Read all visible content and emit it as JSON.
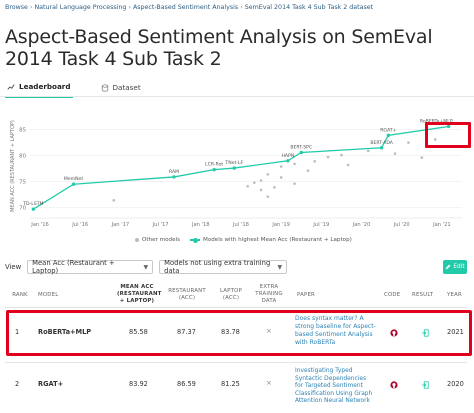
{
  "breadcrumb": [
    "Browse",
    "Natural Language Processing",
    "Aspect-Based Sentiment Analysis",
    "SemEval 2014 Task 4 Sub Task 2 dataset"
  ],
  "page_title": "Aspect-Based Sentiment Analysis on SemEval 2014 Task 4 Sub Task 2",
  "tabs": [
    {
      "label": "Leaderboard",
      "icon": "chart-line-icon",
      "active": true
    },
    {
      "label": "Dataset",
      "icon": "database-icon",
      "active": false
    }
  ],
  "chart_data": {
    "type": "line",
    "ylabel": "MEAN ACC (RESTAURANT + LAPTOP)",
    "ytick_labels": [
      "85",
      "80",
      "75",
      "70"
    ],
    "xtick_labels": [
      "Jan '16",
      "Jul '16",
      "Jan '17",
      "Jul '17",
      "Jan '18",
      "Jul '18",
      "Jan '19",
      "Jul '19",
      "Jan '20",
      "Jul '20",
      "Jan '21"
    ],
    "series": [
      {
        "name": "Models with highest Mean Acc (Restaurant + Laptop)",
        "color": "#21cbaa",
        "points": [
          {
            "x": "2015-12",
            "y": 69.7,
            "label": "TD-LSTM"
          },
          {
            "x": "2016-06",
            "y": 74.5,
            "label": "MemNet"
          },
          {
            "x": "2017-09",
            "y": 75.9,
            "label": "RAM"
          },
          {
            "x": "2018-03",
            "y": 77.3,
            "label": "LCR-Rot"
          },
          {
            "x": "2018-06",
            "y": 77.6,
            "label": "TNet-LF"
          },
          {
            "x": "2019-02",
            "y": 79.0,
            "label": "HAPN"
          },
          {
            "x": "2019-04",
            "y": 80.6,
            "label": "BERT-SPC"
          },
          {
            "x": "2020-04",
            "y": 81.5,
            "label": "BERT-ADA"
          },
          {
            "x": "2020-05",
            "y": 83.9,
            "label": "RGAT+"
          },
          {
            "x": "2021-02",
            "y": 85.6,
            "label": "RoBERTa+MLP"
          }
        ]
      },
      {
        "name": "Other models",
        "color": "#bcbcbc",
        "points": [
          {
            "x": "2016-12",
            "y": 71.4
          },
          {
            "x": "2018-08",
            "y": 74.1
          },
          {
            "x": "2018-09",
            "y": 74.8
          },
          {
            "x": "2018-10",
            "y": 73.4
          },
          {
            "x": "2018-10",
            "y": 75.2
          },
          {
            "x": "2018-11",
            "y": 72.1
          },
          {
            "x": "2018-11",
            "y": 76.4
          },
          {
            "x": "2018-12",
            "y": 73.9
          },
          {
            "x": "2019-01",
            "y": 75.8
          },
          {
            "x": "2019-01",
            "y": 77.9
          },
          {
            "x": "2019-03",
            "y": 74.6
          },
          {
            "x": "2019-03",
            "y": 78.4
          },
          {
            "x": "2019-05",
            "y": 77.1
          },
          {
            "x": "2019-06",
            "y": 78.9
          },
          {
            "x": "2019-08",
            "y": 79.7
          },
          {
            "x": "2019-10",
            "y": 80.1
          },
          {
            "x": "2019-11",
            "y": 78.2
          },
          {
            "x": "2020-02",
            "y": 80.9
          },
          {
            "x": "2020-06",
            "y": 80.4
          },
          {
            "x": "2020-08",
            "y": 82.5
          },
          {
            "x": "2020-10",
            "y": 79.6
          },
          {
            "x": "2020-12",
            "y": 83.1
          }
        ]
      }
    ],
    "ylim": [
      68,
      88
    ],
    "grid": true,
    "legend": {
      "other": "Other models",
      "best": "Models with highest Mean Acc (Restaurant + Laptop)",
      "placement": "bottom"
    }
  },
  "controls": {
    "view_label": "View",
    "metric_select": "Mean Acc (Restaurant + Laptop)",
    "filter_select": "Models not using extra training data",
    "edit_label": "Edit"
  },
  "table": {
    "headers": {
      "rank": "RANK",
      "model": "MODEL",
      "mean_acc": "MEAN ACC (RESTAURANT + LAPTOP)",
      "restaurant": "RESTAURANT (ACC)",
      "laptop": "LAPTOP (ACC)",
      "extra": "EXTRA TRAINING DATA",
      "paper": "PAPER",
      "code": "CODE",
      "result": "RESULT",
      "year": "YEAR"
    },
    "rows": [
      {
        "rank": "1",
        "model": "RoBERTa+MLP",
        "mean_acc": "85.58",
        "restaurant": "87.37",
        "laptop": "83.78",
        "extra": "×",
        "paper": "Does syntax matter? A strong baseline for Aspect-based Sentiment Analysis with RoBERTa",
        "year": "2021"
      },
      {
        "rank": "2",
        "model": "RGAT+",
        "mean_acc": "83.92",
        "restaurant": "86.59",
        "laptop": "81.25",
        "extra": "×",
        "paper": "Investigating Typed Syntactic Dependencies for Targeted Sentiment Classification Using Graph Attention Neural Network",
        "year": "2020"
      }
    ]
  },
  "colors": {
    "accent": "#21cbaa",
    "link": "#2c83b5",
    "highlight": "#e0001b",
    "github": "#b0002a"
  }
}
